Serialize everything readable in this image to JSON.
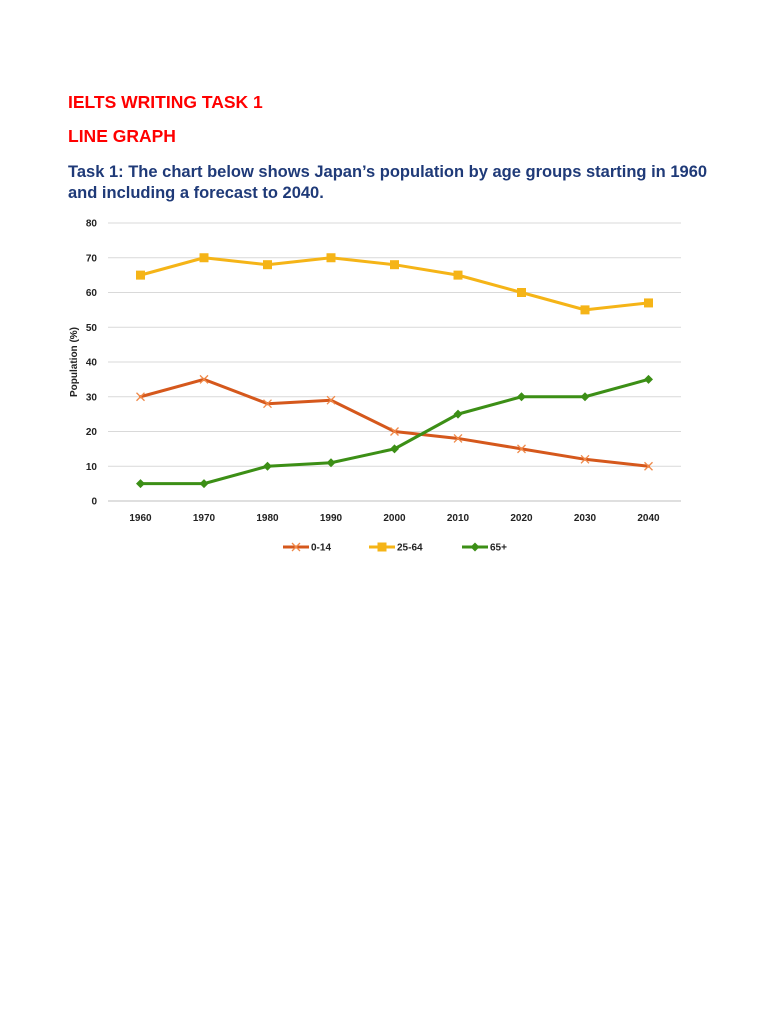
{
  "header": {
    "title": "IELTS WRITING TASK 1",
    "subtitle": "LINE GRAPH",
    "task_text": "Task 1: The chart below shows Japan’s population by age groups starting in 1960 and including a forecast to 2040."
  },
  "chart_data": {
    "type": "line",
    "title": "",
    "xlabel": "",
    "ylabel": "Population (%)",
    "x": [
      "1960",
      "1970",
      "1980",
      "1990",
      "2000",
      "2010",
      "2020",
      "2030",
      "2040"
    ],
    "ylim": [
      0,
      80
    ],
    "yticks": [
      "0",
      "10",
      "20",
      "30",
      "40",
      "50",
      "60",
      "70",
      "80"
    ],
    "grid": true,
    "legend_position": "bottom",
    "series": [
      {
        "name": "0-14",
        "color": "#d5581c",
        "marker": "x-mark",
        "values": [
          30,
          35,
          28,
          29,
          20,
          18,
          15,
          12,
          10
        ]
      },
      {
        "name": "25-64",
        "color": "#f5b417",
        "marker": "square",
        "values": [
          65,
          70,
          68,
          70,
          68,
          65,
          60,
          55,
          57
        ]
      },
      {
        "name": "65+",
        "color": "#3c8f16",
        "marker": "diamond",
        "values": [
          5,
          5,
          10,
          11,
          15,
          25,
          30,
          30,
          35
        ]
      }
    ]
  }
}
